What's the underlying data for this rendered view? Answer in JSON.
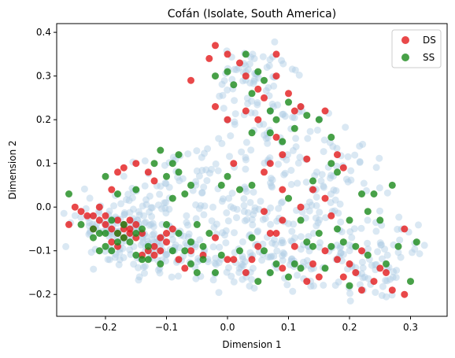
{
  "chart_data": {
    "type": "scatter",
    "title": "Cofán (Isolate, South America)",
    "xlabel": "Dimension 1",
    "ylabel": "Dimension 2",
    "xlim": [
      -0.28,
      0.36
    ],
    "ylim": [
      -0.25,
      0.42
    ],
    "xticks": [
      -0.2,
      -0.1,
      0.0,
      0.1,
      0.2,
      0.3
    ],
    "xtick_labels": [
      "−0.2",
      "−0.1",
      "0.0",
      "0.1",
      "0.2",
      "0.3"
    ],
    "yticks": [
      -0.2,
      -0.1,
      0.0,
      0.1,
      0.2,
      0.3,
      0.4
    ],
    "ytick_labels": [
      "−0.2",
      "−0.1",
      "0.0",
      "0.1",
      "0.2",
      "0.3",
      "0.4"
    ],
    "grid": false,
    "legend_position": "top-right",
    "background_color": "#aecbe5",
    "series": [
      {
        "name": "DS",
        "color": "#e31a1c",
        "points": [
          [
            -0.26,
            -0.04
          ],
          [
            -0.25,
            0.0
          ],
          [
            -0.24,
            -0.01
          ],
          [
            -0.23,
            -0.02
          ],
          [
            -0.22,
            -0.02
          ],
          [
            -0.21,
            -0.03
          ],
          [
            -0.2,
            -0.04
          ],
          [
            -0.19,
            -0.05
          ],
          [
            -0.18,
            -0.06
          ],
          [
            -0.17,
            -0.05
          ],
          [
            -0.16,
            -0.05
          ],
          [
            -0.15,
            -0.04
          ],
          [
            -0.19,
            -0.08
          ],
          [
            -0.18,
            -0.09
          ],
          [
            -0.17,
            -0.07
          ],
          [
            -0.16,
            -0.06
          ],
          [
            -0.15,
            -0.07
          ],
          [
            -0.14,
            -0.06
          ],
          [
            -0.21,
            0.0
          ],
          [
            -0.2,
            -0.02
          ],
          [
            -0.18,
            -0.03
          ],
          [
            -0.17,
            -0.04
          ],
          [
            -0.16,
            -0.03
          ],
          [
            -0.22,
            -0.05
          ],
          [
            -0.13,
            -0.1
          ],
          [
            -0.12,
            -0.09
          ],
          [
            -0.11,
            -0.1
          ],
          [
            -0.1,
            -0.06
          ],
          [
            -0.09,
            -0.05
          ],
          [
            -0.08,
            -0.12
          ],
          [
            -0.19,
            0.04
          ],
          [
            -0.18,
            0.08
          ],
          [
            -0.17,
            0.09
          ],
          [
            -0.13,
            0.08
          ],
          [
            -0.15,
            0.1
          ],
          [
            -0.12,
            0.06
          ],
          [
            -0.06,
            0.29
          ],
          [
            -0.03,
            0.34
          ],
          [
            -0.02,
            0.37
          ],
          [
            0.0,
            0.35
          ],
          [
            0.02,
            0.33
          ],
          [
            0.03,
            0.3
          ],
          [
            0.05,
            0.27
          ],
          [
            0.06,
            0.25
          ],
          [
            0.08,
            0.35
          ],
          [
            0.08,
            0.3
          ],
          [
            0.1,
            0.26
          ],
          [
            0.11,
            0.22
          ],
          [
            0.03,
            0.22
          ],
          [
            0.05,
            0.2
          ],
          [
            0.08,
            0.16
          ],
          [
            0.09,
            0.12
          ],
          [
            0.12,
            0.23
          ],
          [
            0.16,
            0.22
          ],
          [
            -0.02,
            0.23
          ],
          [
            0.0,
            0.2
          ],
          [
            0.01,
            0.1
          ],
          [
            0.06,
            0.08
          ],
          [
            0.07,
            0.1
          ],
          [
            0.09,
            0.04
          ],
          [
            0.13,
            0.11
          ],
          [
            0.14,
            0.04
          ],
          [
            0.16,
            0.02
          ],
          [
            0.19,
            0.09
          ],
          [
            0.17,
            -0.02
          ],
          [
            0.12,
            0.0
          ],
          [
            0.06,
            -0.01
          ],
          [
            0.09,
            -0.03
          ],
          [
            0.07,
            -0.06
          ],
          [
            0.05,
            -0.09
          ],
          [
            0.0,
            -0.12
          ],
          [
            -0.02,
            -0.07
          ],
          [
            -0.04,
            -0.11
          ],
          [
            -0.06,
            -0.1
          ],
          [
            -0.07,
            -0.14
          ],
          [
            0.03,
            -0.15
          ],
          [
            0.01,
            -0.12
          ],
          [
            0.04,
            -0.12
          ],
          [
            0.08,
            -0.06
          ],
          [
            0.11,
            -0.09
          ],
          [
            0.14,
            -0.13
          ],
          [
            0.16,
            -0.1
          ],
          [
            0.18,
            -0.12
          ],
          [
            0.2,
            -0.13
          ],
          [
            0.21,
            -0.15
          ],
          [
            0.22,
            -0.1
          ],
          [
            0.24,
            -0.17
          ],
          [
            0.26,
            -0.15
          ],
          [
            0.27,
            -0.19
          ],
          [
            0.29,
            -0.05
          ],
          [
            0.25,
            -0.14
          ],
          [
            0.15,
            -0.16
          ],
          [
            0.13,
            -0.17
          ],
          [
            0.09,
            -0.14
          ],
          [
            -0.1,
            -0.08
          ],
          [
            -0.11,
            -0.07
          ],
          [
            -0.12,
            -0.11
          ],
          [
            -0.14,
            -0.11
          ],
          [
            0.19,
            -0.16
          ],
          [
            0.22,
            -0.19
          ],
          [
            0.29,
            -0.2
          ],
          [
            0.18,
            0.12
          ]
        ]
      },
      {
        "name": "SS",
        "color": "#1a8a1a",
        "points": [
          [
            -0.26,
            0.03
          ],
          [
            -0.24,
            -0.04
          ],
          [
            -0.22,
            -0.07
          ],
          [
            -0.21,
            -0.1
          ],
          [
            -0.2,
            -0.06
          ],
          [
            -0.19,
            -0.03
          ],
          [
            -0.18,
            -0.06
          ],
          [
            -0.17,
            -0.04
          ],
          [
            -0.16,
            -0.08
          ],
          [
            -0.15,
            -0.06
          ],
          [
            -0.14,
            -0.05
          ],
          [
            -0.13,
            -0.09
          ],
          [
            -0.2,
            -0.09
          ],
          [
            -0.19,
            -0.1
          ],
          [
            -0.18,
            -0.08
          ],
          [
            -0.17,
            -0.07
          ],
          [
            -0.22,
            -0.05
          ],
          [
            -0.21,
            -0.06
          ],
          [
            -0.2,
            0.07
          ],
          [
            -0.18,
            0.03
          ],
          [
            -0.15,
            0.04
          ],
          [
            -0.11,
            0.13
          ],
          [
            -0.1,
            0.07
          ],
          [
            -0.12,
            0.1
          ],
          [
            -0.09,
            0.1
          ],
          [
            -0.08,
            0.12
          ],
          [
            -0.07,
            0.03
          ],
          [
            -0.08,
            0.08
          ],
          [
            -0.09,
            0.02
          ],
          [
            -0.06,
            0.05
          ],
          [
            -0.1,
            -0.04
          ],
          [
            -0.08,
            -0.06
          ],
          [
            -0.06,
            -0.08
          ],
          [
            -0.05,
            -0.04
          ],
          [
            -0.04,
            -0.09
          ],
          [
            -0.03,
            -0.06
          ],
          [
            -0.13,
            -0.12
          ],
          [
            -0.11,
            -0.13
          ],
          [
            -0.09,
            -0.1
          ],
          [
            -0.06,
            -0.13
          ],
          [
            -0.02,
            -0.15
          ],
          [
            -0.01,
            -0.11
          ],
          [
            -0.02,
            0.3
          ],
          [
            0.0,
            0.31
          ],
          [
            0.01,
            0.28
          ],
          [
            0.03,
            0.35
          ],
          [
            0.05,
            0.31
          ],
          [
            0.06,
            0.29
          ],
          [
            0.04,
            0.26
          ],
          [
            0.07,
            0.22
          ],
          [
            0.08,
            0.2
          ],
          [
            0.1,
            0.24
          ],
          [
            0.11,
            0.18
          ],
          [
            0.13,
            0.21
          ],
          [
            0.04,
            0.17
          ],
          [
            0.07,
            0.17
          ],
          [
            0.09,
            0.15
          ],
          [
            0.15,
            0.2
          ],
          [
            0.17,
            0.16
          ],
          [
            0.17,
            0.1
          ],
          [
            0.0,
            0.07
          ],
          [
            -0.01,
            0.05
          ],
          [
            0.02,
            0.04
          ],
          [
            0.04,
            0.05
          ],
          [
            0.1,
            0.02
          ],
          [
            0.14,
            0.06
          ],
          [
            0.18,
            0.08
          ],
          [
            0.22,
            0.03
          ],
          [
            0.24,
            0.03
          ],
          [
            0.27,
            0.05
          ],
          [
            0.23,
            -0.01
          ],
          [
            0.2,
            -0.03
          ],
          [
            0.02,
            -0.1
          ],
          [
            0.04,
            -0.07
          ],
          [
            0.06,
            -0.1
          ],
          [
            0.08,
            -0.13
          ],
          [
            0.1,
            -0.16
          ],
          [
            0.12,
            -0.14
          ],
          [
            0.13,
            -0.08
          ],
          [
            0.15,
            -0.06
          ],
          [
            0.17,
            -0.09
          ],
          [
            0.19,
            -0.08
          ],
          [
            0.21,
            -0.09
          ],
          [
            0.23,
            -0.11
          ],
          [
            0.25,
            -0.03
          ],
          [
            0.26,
            -0.13
          ],
          [
            0.28,
            -0.09
          ],
          [
            0.31,
            -0.08
          ],
          [
            0.3,
            -0.17
          ],
          [
            0.16,
            -0.14
          ],
          [
            0.11,
            -0.13
          ],
          [
            0.07,
            -0.15
          ],
          [
            0.05,
            -0.17
          ],
          [
            -0.04,
            -0.12
          ],
          [
            -0.05,
            -0.15
          ],
          [
            -0.07,
            -0.1
          ],
          [
            0.18,
            -0.05
          ],
          [
            0.2,
            -0.18
          ],
          [
            0.14,
            -0.09
          ],
          [
            -0.15,
            -0.11
          ],
          [
            -0.14,
            -0.12
          ],
          [
            0.12,
            -0.03
          ]
        ]
      }
    ]
  }
}
